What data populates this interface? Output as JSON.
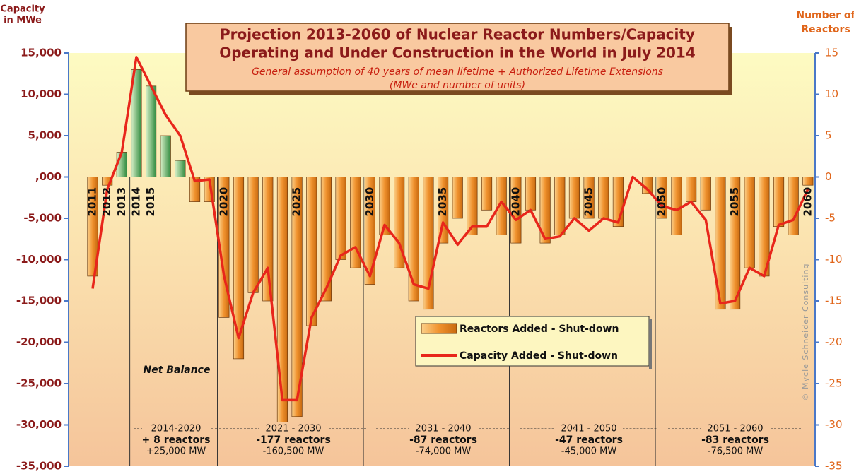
{
  "chart_data": {
    "type": "bar_line",
    "title": [
      "Projection 2013-2060 of Nuclear Reactor Numbers/Capacity",
      "Operating and Under Construction in the World in July 2014"
    ],
    "subtitle": [
      "General assumption of 40 years of mean lifetime  + Authorized Lifetime Extensions",
      "(MWe and number of units)"
    ],
    "ylabel": [
      "Capacity",
      "in MWe"
    ],
    "y2label": [
      "Number of",
      "Reactors"
    ],
    "categories": [
      "2011",
      "2012",
      "2013",
      "2014",
      "2015",
      null,
      null,
      null,
      null,
      "2020",
      null,
      null,
      null,
      null,
      "2025",
      null,
      null,
      null,
      null,
      "2030",
      null,
      null,
      null,
      null,
      "2035",
      null,
      null,
      null,
      null,
      "2040",
      null,
      null,
      null,
      null,
      "2045",
      null,
      null,
      null,
      null,
      "2050",
      null,
      null,
      null,
      null,
      "2055",
      null,
      null,
      null,
      null,
      "2060"
    ],
    "series": [
      {
        "name": "Reactors Added - Shut-down",
        "type": "bar",
        "axis": "y2",
        "color": "#f0922e",
        "positive_color": "#3c9a4a",
        "values": [
          -12,
          -1,
          3,
          13,
          11,
          5,
          2,
          -3,
          -3,
          -17,
          -22,
          -14,
          -15,
          -30,
          -29,
          -18,
          -15,
          -10,
          -11,
          -13,
          -7,
          -11,
          -15,
          -16,
          -8,
          -5,
          -7,
          -4,
          -7,
          -8,
          -4,
          -8,
          -7,
          -5,
          -5,
          -5,
          -6,
          0,
          -2,
          -5,
          -7,
          -3,
          -4,
          -16,
          -16,
          -11,
          -12,
          -6,
          -7,
          -1
        ]
      },
      {
        "name": "Capacity Added - Shut-down",
        "type": "line",
        "axis": "y",
        "color": "#e8261b",
        "values": [
          -13500,
          -1500,
          3000,
          14500,
          11000,
          7500,
          5000,
          -500,
          -300,
          -12000,
          -19500,
          -14000,
          -11000,
          -27000,
          -27000,
          -17000,
          -13500,
          -9500,
          -8500,
          -12000,
          -5800,
          -8000,
          -13000,
          -13500,
          -5500,
          -8200,
          -6000,
          -6000,
          -3000,
          -5200,
          -4000,
          -7500,
          -7200,
          -5000,
          -6500,
          -5000,
          -5500,
          0,
          -1500,
          -3500,
          -4000,
          -3000,
          -5200,
          -15300,
          -15000,
          -11000,
          -12000,
          -5800,
          -5200,
          -1500
        ]
      }
    ],
    "ylim": [
      -35000,
      15000
    ],
    "yticks": [
      {
        "value": 15000,
        "label": "15,000"
      },
      {
        "value": 10000,
        "label": "10,000"
      },
      {
        "value": 5000,
        "label": "5,000"
      },
      {
        "value": 0,
        "label": ",000"
      },
      {
        "value": -5000,
        "label": "-5,000"
      },
      {
        "value": -10000,
        "label": "-10,000"
      },
      {
        "value": -15000,
        "label": "-15,000"
      },
      {
        "value": -20000,
        "label": "-20,000"
      },
      {
        "value": -25000,
        "label": "-25,000"
      },
      {
        "value": -30000,
        "label": "-30,000"
      },
      {
        "value": -35000,
        "label": "-35,000"
      }
    ],
    "y2lim": [
      -35,
      15
    ],
    "y2ticks": [
      15,
      10,
      5,
      0,
      -5,
      -10,
      -15,
      -20,
      -25,
      -30,
      -35
    ],
    "annotations": [
      "Net  Balance",
      "© Mycle Schneider Consulting"
    ],
    "periods": [
      [
        "2014-2020",
        "+ 8 reactors",
        "+25,000 MW"
      ],
      [
        "2021 - 2030",
        "-177 reactors",
        "-160,500 MW"
      ],
      [
        "2031 - 2040",
        "-87 reactors",
        "-74,000 MW"
      ],
      [
        "2041 - 2050",
        "-47 reactors",
        "-45,000 MW"
      ],
      [
        "2051 - 2060",
        "-83 reactors",
        "-76,500 MW"
      ]
    ]
  }
}
